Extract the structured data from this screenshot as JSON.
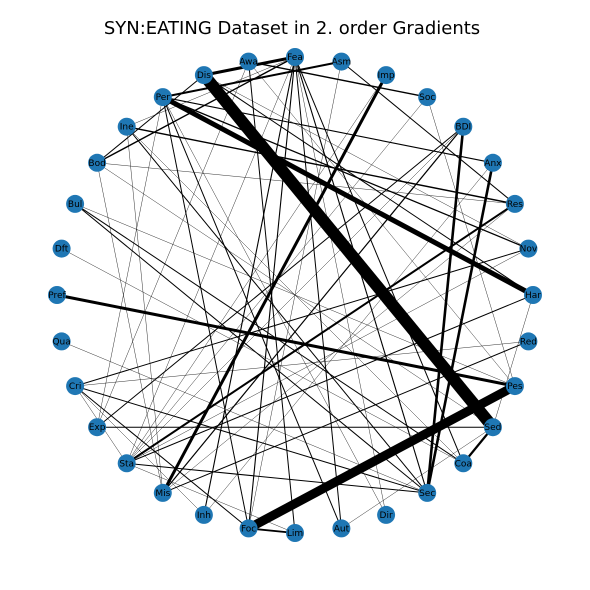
{
  "title": "SYN:EATING Dataset in 2. order Gradients",
  "colors": {
    "node": "#1f77b4",
    "edge": "#000000",
    "background": "#ffffff"
  },
  "graph": {
    "layout": "circular",
    "nodes": [
      "Fea",
      "Asm",
      "Imp",
      "Soc",
      "BDI",
      "Anx",
      "Res",
      "Nov",
      "Har",
      "Red",
      "Pes",
      "Sed",
      "Coa",
      "Sec",
      "Dir",
      "Aut",
      "Lim",
      "Foc",
      "Inh",
      "Mis",
      "Sta",
      "Exp",
      "Cri",
      "Qua",
      "Pref",
      "Dft",
      "Bul",
      "Bod",
      "Ine",
      "Per",
      "Dis",
      "Awa"
    ],
    "edges": [
      {
        "source": "Sed",
        "target": "Dis",
        "weight": 12
      },
      {
        "source": "Pes",
        "target": "Foc",
        "weight": 9
      },
      {
        "source": "Har",
        "target": "Per",
        "weight": 5
      },
      {
        "source": "Pes",
        "target": "Pref",
        "weight": 3
      },
      {
        "source": "Imp",
        "target": "Mis",
        "weight": 3
      },
      {
        "source": "Fea",
        "target": "Dis",
        "weight": 3
      },
      {
        "source": "Sec",
        "target": "BDI",
        "weight": 2.6
      },
      {
        "source": "Anx",
        "target": "Sec",
        "weight": 2.6
      },
      {
        "source": "Sed",
        "target": "Coa",
        "weight": 2.3
      },
      {
        "source": "Asm",
        "target": "Per",
        "weight": 2
      },
      {
        "source": "Res",
        "target": "Sta",
        "weight": 2
      },
      {
        "source": "Lim",
        "target": "Foc",
        "weight": 1.8
      },
      {
        "source": "Soc",
        "target": "Awa",
        "weight": 1.4
      },
      {
        "source": "Res",
        "target": "Ine",
        "weight": 1.4
      },
      {
        "source": "Fea",
        "target": "Bod",
        "weight": 1.4
      },
      {
        "source": "Nov",
        "target": "Per",
        "weight": 1.3
      },
      {
        "source": "BDI",
        "target": "Mis",
        "weight": 1.2
      },
      {
        "source": "Anx",
        "target": "Per",
        "weight": 1.1
      },
      {
        "source": "Fea",
        "target": "Inh",
        "weight": 1.1
      },
      {
        "source": "Fea",
        "target": "Foc",
        "weight": 1.1
      },
      {
        "source": "Fea",
        "target": "Sec",
        "weight": 1.1
      },
      {
        "source": "Fea",
        "target": "Aut",
        "weight": 1.0
      },
      {
        "source": "Dis",
        "target": "Bod",
        "weight": 1.0
      },
      {
        "source": "Dis",
        "target": "Har",
        "weight": 1.0
      },
      {
        "source": "Har",
        "target": "Sta",
        "weight": 1.0
      },
      {
        "source": "Nov",
        "target": "Cri",
        "weight": 1.0
      },
      {
        "source": "Coa",
        "target": "Bul",
        "weight": 1.0
      },
      {
        "source": "Sec",
        "target": "Ine",
        "weight": 1.0
      },
      {
        "source": "Sec",
        "target": "Cri",
        "weight": 1.0
      },
      {
        "source": "Sec",
        "target": "Sta",
        "weight": 1.0
      },
      {
        "source": "Sed",
        "target": "Exp",
        "weight": 1.0
      },
      {
        "source": "Coa",
        "target": "Fea",
        "weight": 1.0
      },
      {
        "source": "BDI",
        "target": "Exp",
        "weight": 1.0
      },
      {
        "source": "Lim",
        "target": "Awa",
        "weight": 1.0
      },
      {
        "source": "Red",
        "target": "Mis",
        "weight": 1.0
      },
      {
        "source": "Sec",
        "target": "Bul",
        "weight": 1.0
      },
      {
        "source": "Foc",
        "target": "Cri",
        "weight": 1.0
      },
      {
        "source": "Asm",
        "target": "Res",
        "weight": 1.0
      },
      {
        "source": "Aut",
        "target": "Per",
        "weight": 1.0
      },
      {
        "source": "Foc",
        "target": "Per",
        "weight": 1.0
      },
      {
        "source": "Fea",
        "target": "Sta",
        "weight": 0.4
      },
      {
        "source": "Imp",
        "target": "Sta",
        "weight": 0.4
      },
      {
        "source": "Soc",
        "target": "Pes",
        "weight": 0.4
      },
      {
        "source": "Anx",
        "target": "Inh",
        "weight": 0.4
      },
      {
        "source": "Res",
        "target": "Mis",
        "weight": 0.4
      },
      {
        "source": "Nov",
        "target": "Sta",
        "weight": 0.4
      },
      {
        "source": "Red",
        "target": "Cri",
        "weight": 0.4
      },
      {
        "source": "Dir",
        "target": "Fea",
        "weight": 0.4
      },
      {
        "source": "Aut",
        "target": "Sed",
        "weight": 0.4
      },
      {
        "source": "Qua",
        "target": "Sec",
        "weight": 0.4
      },
      {
        "source": "Dft",
        "target": "Coa",
        "weight": 0.4
      },
      {
        "source": "Bod",
        "target": "Sed",
        "weight": 0.4
      },
      {
        "source": "Ine",
        "target": "Mis",
        "weight": 0.4
      },
      {
        "source": "Per",
        "target": "Exp",
        "weight": 0.4
      },
      {
        "source": "Awa",
        "target": "Exp",
        "weight": 0.4
      },
      {
        "source": "Asm",
        "target": "Foc",
        "weight": 0.4
      },
      {
        "source": "Mis",
        "target": "Bod",
        "weight": 0.4
      },
      {
        "source": "Pes",
        "target": "Bul",
        "weight": 0.4
      },
      {
        "source": "Har",
        "target": "Sed",
        "weight": 0.4
      },
      {
        "source": "Coa",
        "target": "Ine",
        "weight": 0.4
      },
      {
        "source": "Sta",
        "target": "Cri",
        "weight": 0.4
      },
      {
        "source": "BDI",
        "target": "Sta",
        "weight": 0.4
      },
      {
        "source": "Dir",
        "target": "Per",
        "weight": 0.4
      },
      {
        "source": "Lim",
        "target": "Sta",
        "weight": 0.4
      },
      {
        "source": "Pes",
        "target": "Awa",
        "weight": 0.4
      },
      {
        "source": "Inh",
        "target": "Cri",
        "weight": 0.4
      },
      {
        "source": "Nov",
        "target": "Dis",
        "weight": 0.4
      },
      {
        "source": "Res",
        "target": "Bod",
        "weight": 0.4
      },
      {
        "source": "Fea",
        "target": "Ine",
        "weight": 0.4
      },
      {
        "source": "Soc",
        "target": "Sta",
        "weight": 0.4
      }
    ]
  }
}
